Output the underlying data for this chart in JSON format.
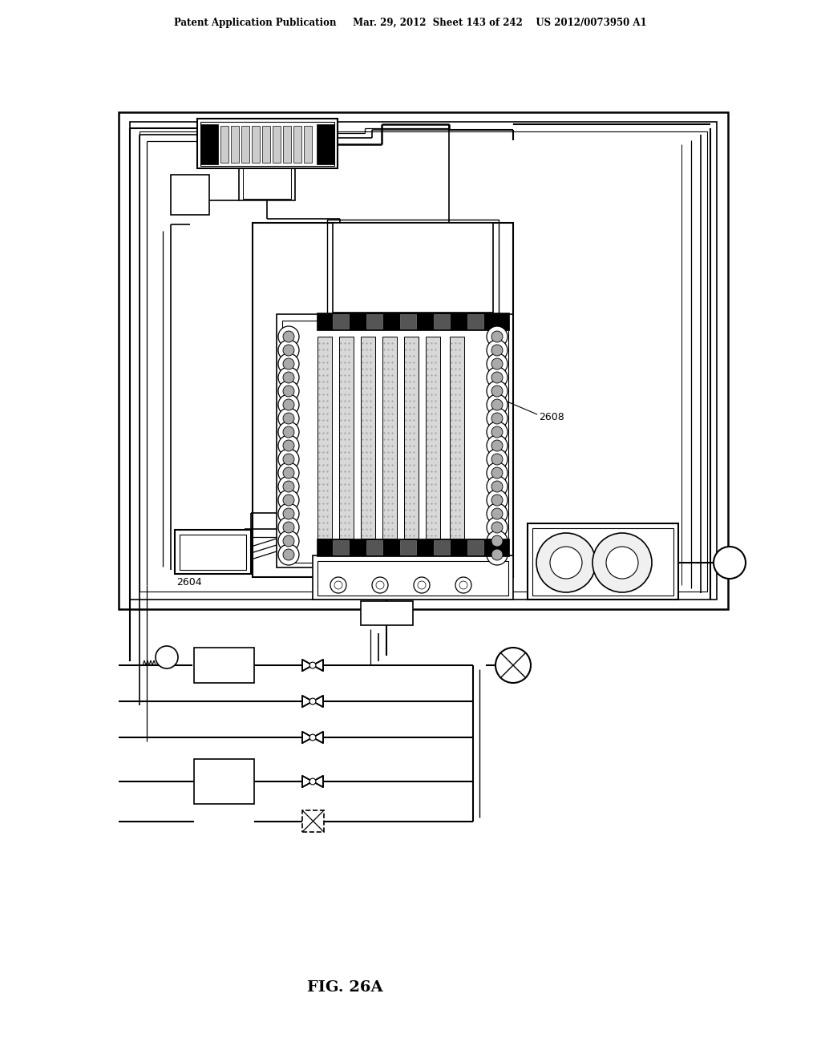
{
  "header_text": "Patent Application Publication     Mar. 29, 2012  Sheet 143 of 242    US 2012/0073950 A1",
  "figure_label": "FIG. 26A",
  "label_2608": "2608",
  "label_2604": "2604",
  "bg_color": "#ffffff",
  "line_color": "#000000"
}
